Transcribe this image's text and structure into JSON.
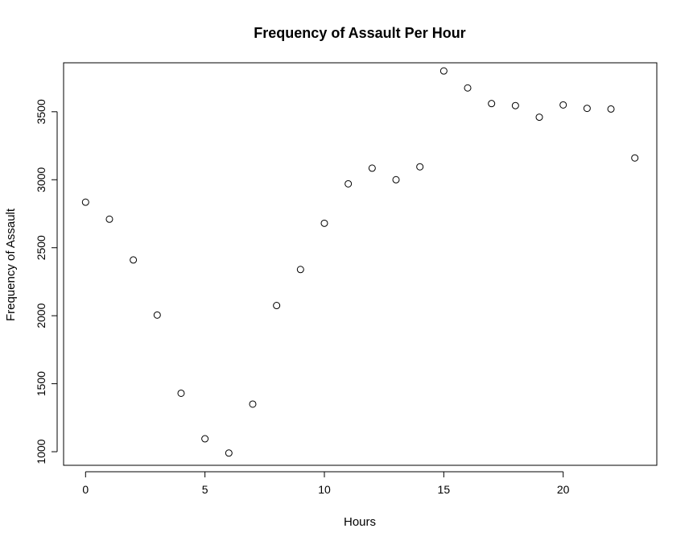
{
  "chart_data": {
    "type": "scatter",
    "title": "Frequency of Assault Per Hour",
    "xlabel": "Hours",
    "ylabel": "Frequency of Assault",
    "x": [
      0,
      1,
      2,
      3,
      4,
      5,
      6,
      7,
      8,
      9,
      10,
      11,
      12,
      13,
      14,
      15,
      16,
      17,
      18,
      19,
      20,
      21,
      22,
      23
    ],
    "y": [
      2835,
      2710,
      2410,
      2005,
      1430,
      1095,
      990,
      1350,
      2075,
      2340,
      2680,
      2970,
      3085,
      3000,
      3095,
      3800,
      3675,
      3560,
      3545,
      3460,
      3550,
      3525,
      3520,
      3160
    ],
    "xlim": [
      -0.92,
      23.92
    ],
    "ylim": [
      900,
      3860
    ],
    "xticks": [
      0,
      5,
      10,
      15,
      20
    ],
    "yticks": [
      1000,
      1500,
      2000,
      2500,
      3000,
      3500
    ],
    "grid": false,
    "legend": "none"
  }
}
